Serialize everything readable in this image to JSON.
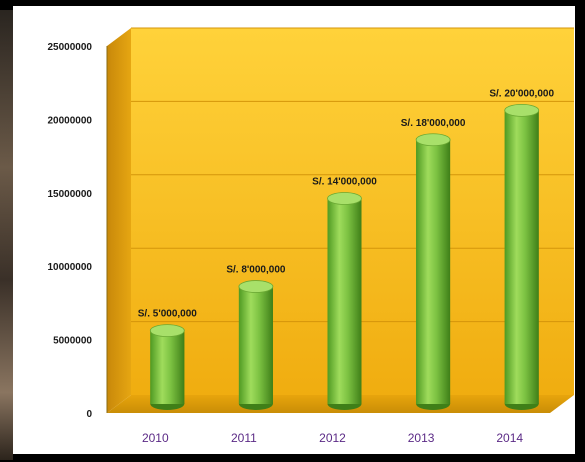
{
  "chart_data": {
    "type": "bar",
    "categories": [
      "2010",
      "2011",
      "2012",
      "2013",
      "2014"
    ],
    "values": [
      5000000,
      8000000,
      14000000,
      18000000,
      20000000
    ],
    "data_labels": [
      "S/. 5'000,000",
      "S/. 8'000,000",
      "S/. 14'000,000",
      "S/. 18'000,000",
      "S/. 20'000,000"
    ],
    "y_ticks": [
      "0",
      "5000000",
      "10000000",
      "15000000",
      "20000000",
      "25000000"
    ],
    "ylim": [
      0,
      25000000
    ],
    "grid": true,
    "style": "3d-cylinder",
    "colors": {
      "bar": "#7cc242",
      "wall": "#f2b514",
      "floor": "#d89a08",
      "category_label": "#5b2a86",
      "tick_label": "#1a1a1a"
    }
  }
}
